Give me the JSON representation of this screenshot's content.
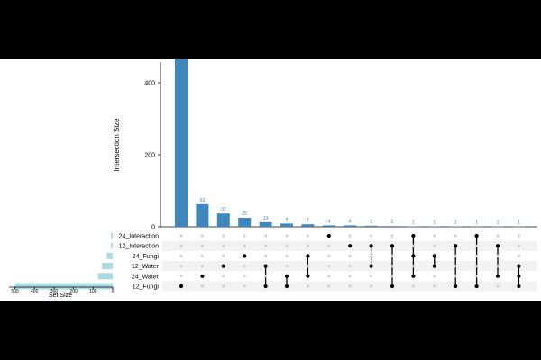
{
  "chart_data": {
    "type": "upset",
    "ylabel": "Intersection Size",
    "set_size_label": "Set Size",
    "ylim": [
      0,
      500
    ],
    "yticks": [
      0,
      200,
      400
    ],
    "set_size_ticks": [
      500,
      400,
      300,
      200,
      100,
      0
    ],
    "set_size_max": 530,
    "sets": [
      {
        "name": "24_Interaction",
        "size": 8
      },
      {
        "name": "12_Interaction",
        "size": 8
      },
      {
        "name": "24_Fungi",
        "size": 30
      },
      {
        "name": "12_Water",
        "size": 55
      },
      {
        "name": "24_Water",
        "size": 75
      },
      {
        "name": "12_Fungi",
        "size": 500
      }
    ],
    "intersections": [
      {
        "label": "490",
        "value": 490,
        "members": [
          "12_Fungi"
        ]
      },
      {
        "label": "63",
        "value": 63,
        "members": [
          "24_Water"
        ]
      },
      {
        "label": "37",
        "value": 37,
        "members": [
          "12_Water"
        ]
      },
      {
        "label": "25",
        "value": 25,
        "members": [
          "24_Fungi"
        ]
      },
      {
        "label": "13",
        "value": 13,
        "members": [
          "12_Water",
          "12_Fungi"
        ]
      },
      {
        "label": "9",
        "value": 9,
        "members": [
          "24_Water",
          "12_Fungi"
        ]
      },
      {
        "label": "7",
        "value": 7,
        "members": [
          "24_Fungi",
          "24_Water"
        ]
      },
      {
        "label": "4",
        "value": 4,
        "members": [
          "24_Interaction"
        ]
      },
      {
        "label": "4",
        "value": 4,
        "members": [
          "12_Interaction"
        ]
      },
      {
        "label": "3",
        "value": 3,
        "members": [
          "12_Interaction",
          "12_Water"
        ]
      },
      {
        "label": "2",
        "value": 2,
        "members": [
          "12_Interaction",
          "12_Fungi"
        ]
      },
      {
        "label": "1",
        "value": 1,
        "members": [
          "24_Interaction",
          "24_Fungi",
          "24_Water"
        ]
      },
      {
        "label": "1",
        "value": 1,
        "members": [
          "24_Fungi",
          "12_Water"
        ]
      },
      {
        "label": "1",
        "value": 1,
        "members": [
          "12_Interaction",
          "12_Fungi"
        ]
      },
      {
        "label": "1",
        "value": 1,
        "members": [
          "24_Interaction",
          "12_Fungi"
        ]
      },
      {
        "label": "1",
        "value": 1,
        "members": [
          "12_Interaction",
          "24_Water"
        ]
      },
      {
        "label": "1",
        "value": 1,
        "members": [
          "12_Water",
          "24_Water",
          "12_Fungi"
        ]
      }
    ],
    "colors": {
      "bar": "#3f88bf",
      "set_bar": "#a9dbe4",
      "bar_label": "#3f7fb5",
      "dot_on": "#000000",
      "dot_off": "#d3d3d3",
      "row_stripe": "#f2f2f2"
    }
  }
}
